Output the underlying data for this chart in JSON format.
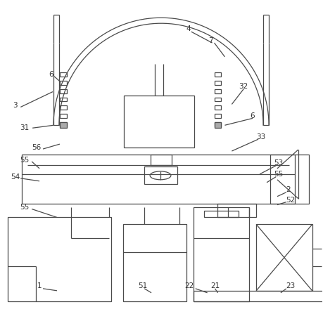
{
  "background_color": "#ffffff",
  "line_color": "#4a4a4a",
  "text_color": "#333333",
  "font_size": 7.5,
  "fig_width": 4.59,
  "fig_height": 4.47,
  "dpi": 100
}
